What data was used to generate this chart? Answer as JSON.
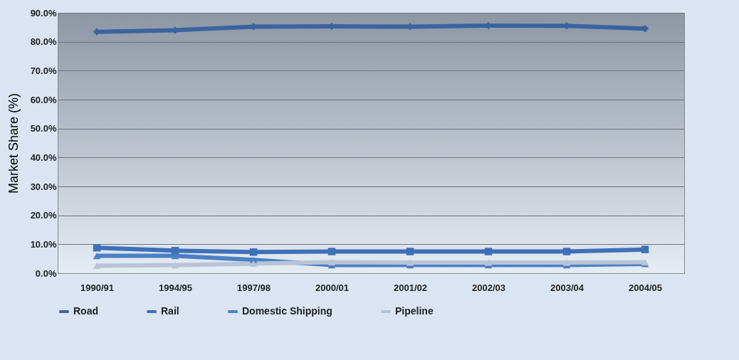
{
  "chart_data": {
    "type": "line",
    "ylabel": "Market Share (%)",
    "categories": [
      "1990/91",
      "1994/95",
      "1997/98",
      "2000/01",
      "2001/02",
      "2002/03",
      "2003/04",
      "2004/05"
    ],
    "series": [
      {
        "name": "Road",
        "color": "#3a64a0",
        "marker": "diamond",
        "values": [
          83.4,
          84.0,
          85.2,
          85.3,
          85.2,
          85.6,
          85.5,
          84.5
        ]
      },
      {
        "name": "Rail",
        "color": "#3e70b8",
        "marker": "square",
        "values": [
          8.8,
          7.8,
          7.3,
          7.5,
          7.5,
          7.5,
          7.5,
          8.2
        ]
      },
      {
        "name": "Domestic Shipping",
        "color": "#4a80c4",
        "marker": "triangle",
        "values": [
          6.0,
          6.0,
          4.6,
          2.8,
          2.8,
          2.8,
          2.8,
          3.2
        ]
      },
      {
        "name": "Pipeline",
        "color": "#b8c4d6",
        "marker": "triangle",
        "values": [
          2.6,
          2.8,
          3.3,
          3.8,
          3.7,
          3.7,
          3.7,
          3.8
        ]
      }
    ],
    "ylim": [
      0,
      90
    ],
    "yticks": [
      {
        "value": 0,
        "label": "0.0%"
      },
      {
        "value": 10,
        "label": "10.0%"
      },
      {
        "value": 20,
        "label": "20.0%"
      },
      {
        "value": 30,
        "label": "30.0%"
      },
      {
        "value": 40,
        "label": "40.0%"
      },
      {
        "value": 50,
        "label": "50.0%"
      },
      {
        "value": 60,
        "label": "60.0%"
      },
      {
        "value": 70,
        "label": "70.0%"
      },
      {
        "value": 80,
        "label": "80.0%"
      },
      {
        "value": 90,
        "label": "90.0%"
      }
    ],
    "grid": "y",
    "legend": "bottom"
  }
}
